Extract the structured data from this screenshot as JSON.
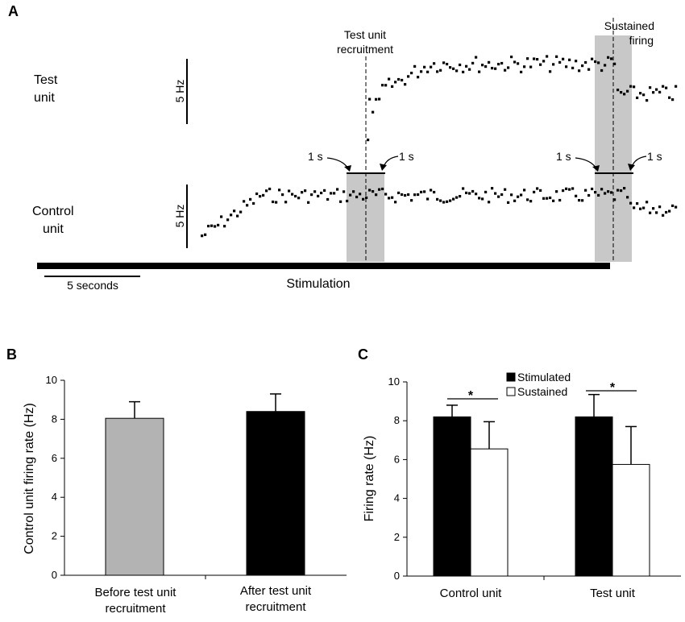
{
  "panel_a": {
    "letter": "A",
    "test_unit_label": [
      "Test",
      "unit"
    ],
    "control_unit_label": [
      "Control",
      "unit"
    ],
    "scale_bar_test": "5 Hz",
    "scale_bar_control": "5 Hz",
    "annotation_recruitment": [
      "Test unit",
      "recruitment"
    ],
    "annotation_sustained": [
      "Sustained",
      "firing"
    ],
    "window_label_1s": "1 s",
    "time_scale_label": "5 seconds",
    "stimulation_label": "Stimulation",
    "shade_color": "#c8c8c8"
  },
  "chart_data": [
    {
      "panel": "B",
      "type": "bar",
      "categories": [
        [
          "Before test unit",
          "recruitment"
        ],
        [
          "After test unit",
          "recruitment"
        ]
      ],
      "values": [
        8.05,
        8.4
      ],
      "error": [
        0.85,
        0.9
      ],
      "colors": [
        "#b3b3b3",
        "#000000"
      ],
      "ylabel": "Control unit firing rate (Hz)",
      "ylim": [
        0,
        10
      ],
      "yticks": [
        "0",
        "2",
        "4",
        "6",
        "8",
        "10"
      ]
    },
    {
      "panel": "C",
      "type": "bar",
      "categories": [
        "Control unit",
        "Test unit"
      ],
      "series": [
        {
          "name": "Stimulated",
          "values": [
            8.2,
            8.2
          ],
          "error": [
            0.6,
            1.15
          ],
          "color": "#000000"
        },
        {
          "name": "Sustained",
          "values": [
            6.55,
            5.75
          ],
          "error": [
            1.4,
            1.95
          ],
          "color": "#ffffff"
        }
      ],
      "ylabel": "Firing rate (Hz)",
      "ylim": [
        0,
        10
      ],
      "yticks": [
        "0",
        "2",
        "4",
        "6",
        "8",
        "10"
      ],
      "significance": [
        "*",
        "*"
      ],
      "legend_position": "top-center"
    }
  ]
}
